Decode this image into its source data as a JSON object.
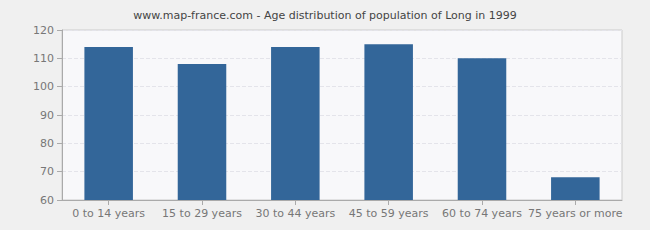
{
  "chart_data": {
    "type": "bar",
    "title": "www.map-france.com - Age distribution of population of Long in 1999",
    "categories": [
      "0 to 14 years",
      "15 to 29 years",
      "30 to 44 years",
      "45 to 59 years",
      "60 to 74 years",
      "75 years or more"
    ],
    "values": [
      114,
      108,
      114,
      115,
      110,
      68
    ],
    "color": "#336699",
    "ylim": [
      60,
      120
    ],
    "yticks": [
      60,
      70,
      80,
      90,
      100,
      110,
      120
    ],
    "grid": true
  }
}
